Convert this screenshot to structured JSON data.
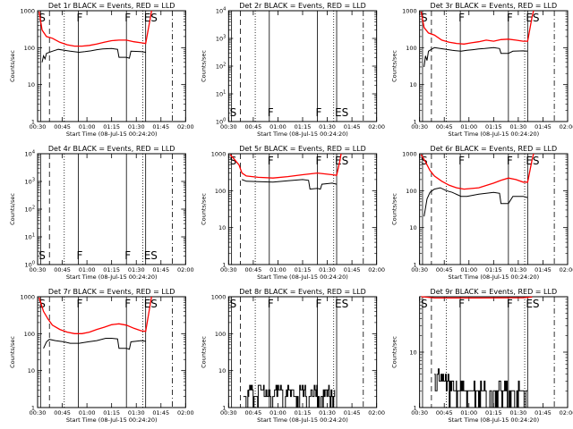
{
  "colors": {
    "events": "#000000",
    "lld": "#ff0000",
    "background": "#ffffff"
  },
  "common": {
    "ylabel": "Counts/sec",
    "xlabel": "Start Time (08-Jul-15 00:24:20)",
    "xticks": [
      "00:30",
      "00:45",
      "01:00",
      "01:15",
      "01:30",
      "01:45",
      "02:00"
    ],
    "yticks_log": [
      "1",
      "10",
      "100",
      "1000"
    ],
    "yticks_sci": [
      "10^0",
      "10^1",
      "10^2",
      "10^3",
      "10^4"
    ],
    "xlim_min": [
      0,
      100
    ],
    "event_markers": [
      {
        "label": "S",
        "t": 2,
        "style": "solid"
      },
      {
        "label": "",
        "t": 8,
        "style": "dashed"
      },
      {
        "label": "",
        "t": 18,
        "style": "dotted"
      },
      {
        "label": "F",
        "t": 27.5,
        "style": "solid"
      },
      {
        "label": "F",
        "t": 60,
        "style": "solid"
      },
      {
        "label": "",
        "t": 71,
        "style": "dotted"
      },
      {
        "label": "ES",
        "t": 73,
        "style": "solid"
      },
      {
        "label": "",
        "t": 91,
        "style": "dashdot"
      }
    ]
  },
  "chart_data": [
    {
      "type": "line",
      "title": "Det 1r BLACK = Events, RED = LLD",
      "ylim": [
        1,
        1000
      ],
      "yscale": "log",
      "tickset": "log",
      "series": [
        {
          "name": "LLD",
          "points": [
            [
              1,
              950
            ],
            [
              3,
              300
            ],
            [
              6,
              200
            ],
            [
              10,
              180
            ],
            [
              15,
              140
            ],
            [
              20,
              120
            ],
            [
              25,
              110
            ],
            [
              30,
              110
            ],
            [
              35,
              115
            ],
            [
              40,
              125
            ],
            [
              45,
              140
            ],
            [
              50,
              155
            ],
            [
              55,
              160
            ],
            [
              60,
              160
            ],
            [
              65,
              145
            ],
            [
              70,
              135
            ],
            [
              73,
              130
            ],
            [
              76,
              600
            ],
            [
              77,
              1000
            ]
          ]
        },
        {
          "name": "Events",
          "points": [
            [
              3,
              40
            ],
            [
              4,
              60
            ],
            [
              5,
              50
            ],
            [
              6,
              70
            ],
            [
              8,
              75
            ],
            [
              10,
              80
            ],
            [
              14,
              90
            ],
            [
              18,
              85
            ],
            [
              22,
              80
            ],
            [
              28,
              75
            ],
            [
              32,
              78
            ],
            [
              36,
              82
            ],
            [
              40,
              88
            ],
            [
              44,
              92
            ],
            [
              50,
              95
            ],
            [
              54,
              90
            ],
            [
              55,
              55
            ],
            [
              60,
              55
            ],
            [
              62,
              52
            ],
            [
              63,
              80
            ],
            [
              70,
              78
            ],
            [
              73,
              75
            ]
          ]
        }
      ]
    },
    {
      "type": "line",
      "title": "Det 2r BLACK = Events, RED = LLD",
      "ylim": [
        1,
        10000
      ],
      "yscale": "log",
      "tickset": "sci",
      "series": []
    },
    {
      "type": "line",
      "title": "Det 3r BLACK = Events, RED = LLD",
      "ylim": [
        1,
        1000
      ],
      "yscale": "log",
      "tickset": "log",
      "series": [
        {
          "name": "LLD",
          "points": [
            [
              1,
              950
            ],
            [
              3,
              350
            ],
            [
              6,
              250
            ],
            [
              10,
              220
            ],
            [
              15,
              160
            ],
            [
              20,
              140
            ],
            [
              25,
              130
            ],
            [
              30,
              125
            ],
            [
              35,
              135
            ],
            [
              40,
              145
            ],
            [
              45,
              160
            ],
            [
              50,
              150
            ],
            [
              55,
              165
            ],
            [
              60,
              170
            ],
            [
              65,
              160
            ],
            [
              70,
              150
            ],
            [
              73,
              150
            ],
            [
              76,
              700
            ],
            [
              77,
              1000
            ]
          ]
        },
        {
          "name": "Events",
          "points": [
            [
              3,
              30
            ],
            [
              4,
              60
            ],
            [
              5,
              45
            ],
            [
              6,
              80
            ],
            [
              8,
              90
            ],
            [
              10,
              100
            ],
            [
              14,
              95
            ],
            [
              18,
              90
            ],
            [
              22,
              85
            ],
            [
              28,
              80
            ],
            [
              32,
              85
            ],
            [
              36,
              88
            ],
            [
              40,
              92
            ],
            [
              44,
              95
            ],
            [
              50,
              100
            ],
            [
              54,
              95
            ],
            [
              55,
              70
            ],
            [
              60,
              70
            ],
            [
              63,
              80
            ],
            [
              70,
              82
            ],
            [
              73,
              80
            ]
          ]
        }
      ]
    },
    {
      "type": "line",
      "title": "Det 4r BLACK = Events, RED = LLD",
      "ylim": [
        1,
        10000
      ],
      "yscale": "log",
      "tickset": "sci",
      "series": []
    },
    {
      "type": "line",
      "title": "Det 5r BLACK = Events, RED = LLD",
      "ylim": [
        1,
        1000
      ],
      "yscale": "log",
      "tickset": "log",
      "series": [
        {
          "name": "LLD",
          "points": [
            [
              1,
              950
            ],
            [
              4,
              700
            ],
            [
              7,
              500
            ],
            [
              9,
              300
            ],
            [
              12,
              250
            ],
            [
              20,
              230
            ],
            [
              30,
              220
            ],
            [
              40,
              240
            ],
            [
              50,
              270
            ],
            [
              60,
              300
            ],
            [
              70,
              270
            ],
            [
              73,
              260
            ],
            [
              75,
              600
            ],
            [
              76,
              1000
            ]
          ]
        },
        {
          "name": "Events",
          "points": [
            [
              9,
              200
            ],
            [
              12,
              180
            ],
            [
              20,
              175
            ],
            [
              30,
              170
            ],
            [
              40,
              185
            ],
            [
              50,
              200
            ],
            [
              54,
              190
            ],
            [
              55,
              110
            ],
            [
              60,
              115
            ],
            [
              62,
              110
            ],
            [
              63,
              150
            ],
            [
              70,
              160
            ],
            [
              73,
              150
            ]
          ]
        }
      ]
    },
    {
      "type": "line",
      "title": "Det 6r BLACK = Events, RED = LLD",
      "ylim": [
        1,
        1000
      ],
      "yscale": "log",
      "tickset": "log",
      "series": [
        {
          "name": "LLD",
          "points": [
            [
              1,
              950
            ],
            [
              4,
              600
            ],
            [
              7,
              350
            ],
            [
              10,
              250
            ],
            [
              15,
              180
            ],
            [
              20,
              140
            ],
            [
              25,
              120
            ],
            [
              30,
              110
            ],
            [
              40,
              120
            ],
            [
              50,
              160
            ],
            [
              55,
              190
            ],
            [
              60,
              220
            ],
            [
              65,
              200
            ],
            [
              70,
              170
            ],
            [
              73,
              170
            ],
            [
              76,
              700
            ],
            [
              77,
              1000
            ]
          ]
        },
        {
          "name": "Events",
          "points": [
            [
              3,
              20
            ],
            [
              5,
              60
            ],
            [
              7,
              90
            ],
            [
              10,
              110
            ],
            [
              14,
              120
            ],
            [
              18,
              100
            ],
            [
              22,
              90
            ],
            [
              28,
              70
            ],
            [
              32,
              70
            ],
            [
              40,
              80
            ],
            [
              50,
              90
            ],
            [
              54,
              85
            ],
            [
              55,
              45
            ],
            [
              60,
              45
            ],
            [
              63,
              70
            ],
            [
              70,
              70
            ],
            [
              73,
              65
            ]
          ]
        }
      ]
    },
    {
      "type": "line",
      "title": "Det 7r BLACK = Events, RED = LLD",
      "ylim": [
        1,
        1000
      ],
      "yscale": "log",
      "tickset": "log",
      "series": [
        {
          "name": "LLD",
          "points": [
            [
              1,
              950
            ],
            [
              4,
              400
            ],
            [
              7,
              250
            ],
            [
              10,
              170
            ],
            [
              15,
              130
            ],
            [
              20,
              110
            ],
            [
              25,
              100
            ],
            [
              30,
              100
            ],
            [
              35,
              110
            ],
            [
              40,
              130
            ],
            [
              45,
              150
            ],
            [
              50,
              175
            ],
            [
              55,
              185
            ],
            [
              60,
              170
            ],
            [
              65,
              140
            ],
            [
              70,
              120
            ],
            [
              73,
              115
            ],
            [
              76,
              600
            ],
            [
              77,
              1000
            ]
          ]
        },
        {
          "name": "Events",
          "points": [
            [
              4,
              40
            ],
            [
              6,
              60
            ],
            [
              8,
              70
            ],
            [
              12,
              65
            ],
            [
              18,
              60
            ],
            [
              22,
              55
            ],
            [
              28,
              55
            ],
            [
              34,
              60
            ],
            [
              40,
              65
            ],
            [
              46,
              75
            ],
            [
              50,
              75
            ],
            [
              54,
              72
            ],
            [
              55,
              40
            ],
            [
              60,
              40
            ],
            [
              62,
              38
            ],
            [
              63,
              60
            ],
            [
              70,
              65
            ],
            [
              73,
              62
            ]
          ]
        }
      ]
    },
    {
      "type": "line",
      "title": "Det 8r BLACK = Events, RED = LLD",
      "ylim": [
        1,
        1000
      ],
      "yscale": "log",
      "tickset": "log",
      "series": [
        {
          "name": "Events",
          "noisy": true,
          "points": [
            [
              10,
              2
            ],
            [
              13,
              3
            ],
            [
              16,
              2
            ],
            [
              20,
              4
            ],
            [
              24,
              3
            ],
            [
              28,
              2
            ],
            [
              32,
              3
            ],
            [
              36,
              2
            ],
            [
              40,
              3
            ],
            [
              44,
              2
            ],
            [
              48,
              3
            ],
            [
              52,
              2
            ],
            [
              56,
              3
            ],
            [
              60,
              2
            ],
            [
              64,
              3
            ],
            [
              68,
              2
            ],
            [
              72,
              2
            ]
          ]
        }
      ]
    },
    {
      "type": "line",
      "title": "Det 9r BLACK = Events, RED = LLD",
      "ylim": [
        1,
        100
      ],
      "yscale": "log",
      "tickset": "log2",
      "series": [
        {
          "name": "LLD",
          "points": [
            [
              1,
              100
            ],
            [
              5,
              98
            ],
            [
              10,
              95
            ],
            [
              40,
              95
            ],
            [
              70,
              96
            ],
            [
              76,
              99
            ]
          ]
        },
        {
          "name": "Events",
          "noisy": true,
          "points": [
            [
              10,
              3
            ],
            [
              12,
              4
            ],
            [
              15,
              3
            ],
            [
              20,
              2
            ],
            [
              25,
              2
            ],
            [
              30,
              1.5
            ],
            [
              35,
              2
            ],
            [
              40,
              2
            ],
            [
              45,
              1.5
            ],
            [
              50,
              2
            ],
            [
              55,
              2
            ],
            [
              60,
              1.5
            ],
            [
              65,
              2
            ],
            [
              70,
              2
            ],
            [
              73,
              2
            ]
          ]
        }
      ]
    }
  ]
}
